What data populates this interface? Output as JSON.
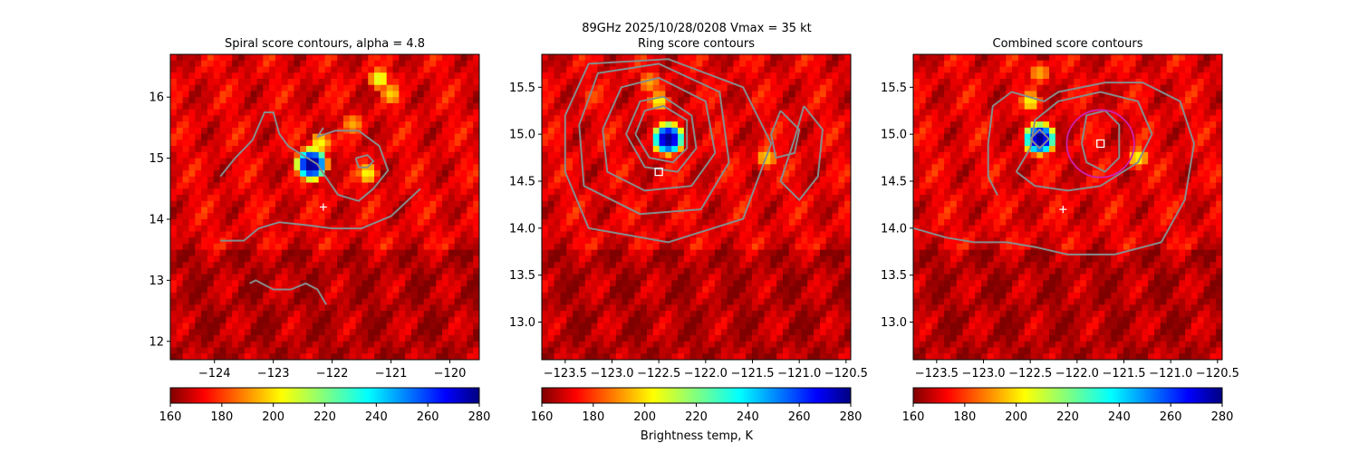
{
  "figure": {
    "suptitle_line1": "89GHz  2025/10/28/0208    Vmax = 35 kt",
    "colorbar_label": "Brightness temp, K"
  },
  "colormap": "jet",
  "chart_data": [
    {
      "type": "heatmap",
      "title": "Spiral score contours, alpha =  4.8",
      "xlim": [
        -124.75,
        -119.5
      ],
      "ylim": [
        11.7,
        16.7
      ],
      "x_ticks": [
        -124,
        -123,
        -122,
        -121,
        -120
      ],
      "x_tick_labels": [
        "−124",
        "−123",
        "−122",
        "−121",
        "−120"
      ],
      "y_ticks": [
        12,
        13,
        14,
        15,
        16
      ],
      "y_tick_labels": [
        "12",
        "13",
        "14",
        "15",
        "16"
      ],
      "colorbar": {
        "range": [
          160,
          280
        ],
        "ticks": [
          160,
          180,
          200,
          220,
          240,
          260,
          280
        ],
        "tick_labels": [
          "160",
          "180",
          "200",
          "220",
          "240",
          "260",
          "280"
        ]
      },
      "cold_spots": [
        {
          "lon": -122.35,
          "lat": 14.9,
          "tb": 160
        },
        {
          "lon": -122.2,
          "lat": 15.25,
          "tb": 235
        },
        {
          "lon": -121.65,
          "lat": 15.55,
          "tb": 245
        },
        {
          "lon": -121.2,
          "lat": 16.3,
          "tb": 230
        },
        {
          "lon": -121.0,
          "lat": 16.05,
          "tb": 240
        },
        {
          "lon": -121.4,
          "lat": 14.75,
          "tb": 235
        }
      ],
      "center_marker": {
        "symbol": "plus",
        "lon": -122.15,
        "lat": 14.2
      },
      "contours": [
        [
          [
            -123.9,
            14.7
          ],
          [
            -123.65,
            15.0
          ],
          [
            -123.35,
            15.3
          ],
          [
            -123.15,
            15.75
          ],
          [
            -123.0,
            15.75
          ],
          [
            -122.9,
            15.4
          ],
          [
            -122.75,
            15.2
          ],
          [
            -122.5,
            15.05
          ],
          [
            -122.25,
            14.9
          ],
          [
            -122.15,
            14.75
          ],
          [
            -121.9,
            14.4
          ],
          [
            -121.55,
            14.3
          ],
          [
            -121.3,
            14.5
          ],
          [
            -121.05,
            14.8
          ],
          [
            -121.2,
            15.2
          ],
          [
            -121.55,
            15.45
          ],
          [
            -121.95,
            15.45
          ],
          [
            -122.25,
            15.35
          ],
          [
            -122.15,
            15.5
          ]
        ],
        [
          [
            -121.6,
            15.0
          ],
          [
            -121.4,
            15.05
          ],
          [
            -121.3,
            14.95
          ],
          [
            -121.4,
            14.85
          ],
          [
            -121.55,
            14.85
          ],
          [
            -121.6,
            15.0
          ]
        ],
        [
          [
            -123.9,
            13.65
          ],
          [
            -123.5,
            13.65
          ],
          [
            -123.25,
            13.85
          ],
          [
            -122.9,
            13.95
          ],
          [
            -122.4,
            13.9
          ],
          [
            -122.0,
            13.85
          ],
          [
            -121.5,
            13.85
          ],
          [
            -121.0,
            14.05
          ],
          [
            -120.5,
            14.5
          ]
        ],
        [
          [
            -123.4,
            12.95
          ],
          [
            -123.3,
            13.0
          ],
          [
            -123.0,
            12.85
          ],
          [
            -122.7,
            12.85
          ],
          [
            -122.45,
            12.95
          ],
          [
            -122.25,
            12.85
          ],
          [
            -122.1,
            12.6
          ]
        ]
      ]
    },
    {
      "type": "heatmap",
      "title": "Ring score contours",
      "xlim": [
        -123.75,
        -120.45
      ],
      "ylim": [
        12.6,
        15.85
      ],
      "x_ticks": [
        -123.5,
        -123.0,
        -122.5,
        -122.0,
        -121.5,
        -121.0,
        -120.5
      ],
      "x_tick_labels": [
        "−123.5",
        "−123.0",
        "−122.5",
        "−122.0",
        "−121.5",
        "−121.0",
        "−120.5"
      ],
      "y_ticks": [
        13.0,
        13.5,
        14.0,
        14.5,
        15.0,
        15.5
      ],
      "y_tick_labels": [
        "13.0",
        "13.5",
        "14.0",
        "14.5",
        "15.0",
        "15.5"
      ],
      "colorbar": {
        "range": [
          160,
          280
        ],
        "ticks": [
          160,
          180,
          200,
          220,
          240,
          260,
          280
        ],
        "tick_labels": [
          "160",
          "180",
          "200",
          "220",
          "240",
          "260",
          "280"
        ]
      },
      "cold_spots": [
        {
          "lon": -122.4,
          "lat": 14.95,
          "tb": 160
        },
        {
          "lon": -122.5,
          "lat": 15.35,
          "tb": 235
        },
        {
          "lon": -122.6,
          "lat": 15.55,
          "tb": 245
        },
        {
          "lon": -121.35,
          "lat": 14.75,
          "tb": 240
        },
        {
          "lon": -123.2,
          "lat": 15.4,
          "tb": 255
        }
      ],
      "center_marker": {
        "symbol": "square",
        "lon": -122.5,
        "lat": 14.6
      },
      "contours": [
        [
          [
            -122.75,
            15.0
          ],
          [
            -122.65,
            15.25
          ],
          [
            -122.45,
            15.3
          ],
          [
            -122.2,
            15.15
          ],
          [
            -122.2,
            14.85
          ],
          [
            -122.35,
            14.7
          ],
          [
            -122.6,
            14.75
          ],
          [
            -122.75,
            15.0
          ]
        ],
        [
          [
            -122.85,
            15.0
          ],
          [
            -122.7,
            15.35
          ],
          [
            -122.45,
            15.4
          ],
          [
            -122.15,
            15.2
          ],
          [
            -122.1,
            14.85
          ],
          [
            -122.3,
            14.6
          ],
          [
            -122.65,
            14.65
          ],
          [
            -122.85,
            15.0
          ]
        ],
        [
          [
            -123.1,
            15.05
          ],
          [
            -122.9,
            15.5
          ],
          [
            -122.5,
            15.6
          ],
          [
            -122.0,
            15.35
          ],
          [
            -121.9,
            14.8
          ],
          [
            -122.15,
            14.45
          ],
          [
            -122.65,
            14.4
          ],
          [
            -123.05,
            14.6
          ],
          [
            -123.1,
            15.05
          ]
        ],
        [
          [
            -123.35,
            15.1
          ],
          [
            -123.15,
            15.65
          ],
          [
            -122.5,
            15.75
          ],
          [
            -121.85,
            15.45
          ],
          [
            -121.75,
            14.7
          ],
          [
            -122.05,
            14.2
          ],
          [
            -122.7,
            14.15
          ],
          [
            -123.3,
            14.45
          ],
          [
            -123.35,
            15.1
          ]
        ],
        [
          [
            -123.5,
            15.2
          ],
          [
            -123.25,
            15.75
          ],
          [
            -122.4,
            15.8
          ],
          [
            -121.6,
            15.5
          ],
          [
            -121.3,
            14.9
          ],
          [
            -121.6,
            14.1
          ],
          [
            -122.4,
            13.85
          ],
          [
            -123.25,
            14.0
          ],
          [
            -123.5,
            14.6
          ],
          [
            -123.5,
            15.2
          ]
        ],
        [
          [
            -121.2,
            15.25
          ],
          [
            -121.0,
            15.05
          ],
          [
            -121.05,
            14.8
          ],
          [
            -121.25,
            14.75
          ],
          [
            -121.3,
            15.0
          ],
          [
            -121.2,
            15.25
          ]
        ],
        [
          [
            -120.95,
            15.3
          ],
          [
            -120.75,
            15.05
          ],
          [
            -120.8,
            14.55
          ],
          [
            -121.0,
            14.3
          ],
          [
            -121.2,
            14.5
          ],
          [
            -121.05,
            14.95
          ],
          [
            -120.95,
            15.3
          ]
        ]
      ]
    },
    {
      "type": "heatmap",
      "title": "Combined score contours",
      "xlim": [
        -123.75,
        -120.45
      ],
      "ylim": [
        12.6,
        15.85
      ],
      "x_ticks": [
        -123.5,
        -123.0,
        -122.5,
        -122.0,
        -121.5,
        -121.0,
        -120.5
      ],
      "x_tick_labels": [
        "−123.5",
        "−123.0",
        "−122.5",
        "−122.0",
        "−121.5",
        "−121.0",
        "−120.5"
      ],
      "y_ticks": [
        13.0,
        13.5,
        14.0,
        14.5,
        15.0,
        15.5
      ],
      "y_tick_labels": [
        "13.0",
        "13.5",
        "14.0",
        "14.5",
        "15.0",
        "15.5"
      ],
      "colorbar": {
        "range": [
          160,
          280
        ],
        "ticks": [
          160,
          180,
          200,
          220,
          240,
          260,
          280
        ],
        "tick_labels": [
          "160",
          "180",
          "200",
          "220",
          "240",
          "260",
          "280"
        ]
      },
      "cold_spots": [
        {
          "lon": -122.4,
          "lat": 14.95,
          "tb": 160
        },
        {
          "lon": -122.5,
          "lat": 15.35,
          "tb": 235
        },
        {
          "lon": -122.4,
          "lat": 15.65,
          "tb": 245
        },
        {
          "lon": -121.35,
          "lat": 14.75,
          "tb": 235
        }
      ],
      "center_markers": [
        {
          "symbol": "square",
          "lon": -121.75,
          "lat": 14.9
        },
        {
          "symbol": "plus",
          "lon": -122.15,
          "lat": 14.2
        }
      ],
      "ring": {
        "lon": -121.75,
        "lat": 14.9,
        "radius_deg": 0.36,
        "color": "#cc22aa"
      },
      "contours": [
        [
          [
            -121.95,
            14.9
          ],
          [
            -121.9,
            15.2
          ],
          [
            -121.7,
            15.25
          ],
          [
            -121.55,
            15.1
          ],
          [
            -121.55,
            14.75
          ],
          [
            -121.7,
            14.6
          ],
          [
            -121.9,
            14.7
          ],
          [
            -121.95,
            14.9
          ]
        ],
        [
          [
            -122.65,
            14.6
          ],
          [
            -122.5,
            14.85
          ],
          [
            -122.45,
            15.15
          ],
          [
            -122.2,
            15.35
          ],
          [
            -121.75,
            15.45
          ],
          [
            -121.35,
            15.35
          ],
          [
            -121.2,
            15.0
          ],
          [
            -121.35,
            14.7
          ],
          [
            -121.75,
            14.45
          ],
          [
            -122.1,
            14.4
          ],
          [
            -122.45,
            14.45
          ],
          [
            -122.65,
            14.6
          ]
        ],
        [
          [
            -122.5,
            14.95
          ],
          [
            -122.4,
            15.05
          ],
          [
            -122.3,
            14.95
          ],
          [
            -122.4,
            14.85
          ],
          [
            -122.5,
            14.95
          ]
        ],
        [
          [
            -123.75,
            14.0
          ],
          [
            -123.4,
            13.9
          ],
          [
            -123.1,
            13.85
          ],
          [
            -122.75,
            13.85
          ],
          [
            -122.45,
            13.8
          ],
          [
            -122.1,
            13.72
          ],
          [
            -121.6,
            13.72
          ],
          [
            -121.1,
            13.85
          ],
          [
            -120.85,
            14.3
          ],
          [
            -120.75,
            14.9
          ],
          [
            -120.9,
            15.35
          ],
          [
            -121.3,
            15.55
          ],
          [
            -121.7,
            15.55
          ],
          [
            -122.2,
            15.45
          ],
          [
            -122.35,
            15.35
          ],
          [
            -122.7,
            15.45
          ],
          [
            -122.9,
            15.3
          ],
          [
            -122.95,
            14.9
          ],
          [
            -122.95,
            14.55
          ],
          [
            -122.85,
            14.35
          ]
        ]
      ]
    }
  ]
}
